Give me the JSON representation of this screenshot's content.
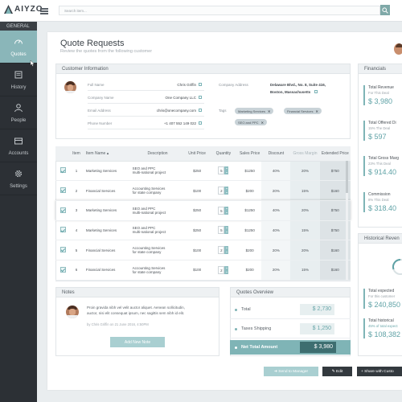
{
  "app": {
    "logo_text": "AIYZO"
  },
  "search": {
    "placeholder": "Search item..."
  },
  "sidebar": {
    "heading": "GENERAL",
    "items": [
      {
        "label": "Quotes",
        "icon": "gauge-icon",
        "active": true
      },
      {
        "label": "History",
        "icon": "history-icon"
      },
      {
        "label": "People",
        "icon": "person-icon"
      },
      {
        "label": "Accounts",
        "icon": "accounts-icon"
      },
      {
        "label": "Settings",
        "icon": "gear-icon"
      }
    ]
  },
  "page": {
    "title": "Quote Requests",
    "subtitle": "Review the quotes from the following customer"
  },
  "customer": {
    "heading": "Customer Information",
    "full_name_label": "Full Name",
    "full_name": "Chris Griffin",
    "company_name_label": "Company Name",
    "company_name": "One Company LLC",
    "email_label": "Email Address",
    "email": "chris@onecompany.com",
    "phone_label": "Phone Number",
    "phone": "+1 407 552 149 022",
    "address_label": "Company Address",
    "address_line1": "Delaware Blvd., No. 8, Suite 416,",
    "address_line2": "Boston, Massachusetts",
    "tags_label": "Tags",
    "tags": [
      "Marketing Services",
      "Financial Services",
      "SEO and PPC"
    ]
  },
  "table": {
    "headers": [
      "Item",
      "Item Name",
      "Description",
      "Unit Price",
      "Quantity",
      "Sales Price",
      "Discount",
      "Gross Margin",
      "Extended Price"
    ],
    "rows": [
      {
        "item": "1",
        "name": "Marketing Services",
        "desc1": "SEO and PPC",
        "desc2": "multi-national project",
        "unit": "$250",
        "qty": "5",
        "sales": "$1250",
        "discount": "40%",
        "gross": "20%",
        "ext": "$750"
      },
      {
        "item": "2",
        "name": "Financial Services",
        "desc1": "Accounting Services",
        "desc2": "for state company",
        "unit": "$100",
        "qty": "2",
        "sales": "$200",
        "discount": "20%",
        "gross": "15%",
        "ext": "$160"
      },
      {
        "item": "3",
        "name": "Marketing Services",
        "desc1": "SEO and PPC",
        "desc2": "multi-national project",
        "unit": "$250",
        "qty": "5",
        "sales": "$1250",
        "discount": "40%",
        "gross": "20%",
        "ext": "$750"
      },
      {
        "item": "4",
        "name": "Marketing Services",
        "desc1": "SEO and PPC",
        "desc2": "multi-national project",
        "unit": "$250",
        "qty": "5",
        "sales": "$1250",
        "discount": "40%",
        "gross": "15%",
        "ext": "$750"
      },
      {
        "item": "5",
        "name": "Financial Services",
        "desc1": "Accounting Services",
        "desc2": "for state company",
        "unit": "$100",
        "qty": "2",
        "sales": "$200",
        "discount": "20%",
        "gross": "20%",
        "ext": "$160"
      },
      {
        "item": "6",
        "name": "Financial Services",
        "desc1": "Accounting Services",
        "desc2": "for state company",
        "unit": "$100",
        "qty": "2",
        "sales": "$200",
        "discount": "20%",
        "gross": "15%",
        "ext": "$160"
      }
    ]
  },
  "notes": {
    "heading": "Notes",
    "text_line1": "Proin gravida nibh vel velit auctor aliquet. Aenean sollicitudin,",
    "text_line2": "auctor, nisi elit consequat ipsum, nec sagittis sem nibh id elit.",
    "meta": "by Chris Griffin on 21 June 2016, 4:50PM",
    "add_button": "Add New Note"
  },
  "overview": {
    "heading": "Quotes Overview",
    "total_label": "Total",
    "total": "$ 2,730",
    "shipping_label": "Taxes Shipping",
    "shipping": "$ 1,250",
    "net_label": "Net Total Amount",
    "net": "$ 3,980"
  },
  "financials": {
    "heading": "Financials",
    "items": [
      {
        "title": "Total Revenue",
        "sub": "For This Deal",
        "value": "$ 3,980"
      },
      {
        "title": "Total Offered Di",
        "sub": "15% The Deal",
        "value": "$ 597"
      },
      {
        "title": "Total Gross Marg",
        "sub": "23% This Deal",
        "value": "$ 914.40"
      },
      {
        "title": "Commission",
        "sub": "8% This Deal",
        "value": "$ 318.40"
      }
    ]
  },
  "historical": {
    "heading": "Historical Reven",
    "items": [
      {
        "title": "Total expected",
        "sub": "For this customer",
        "value": "$ 240,850"
      },
      {
        "title": "Total historical",
        "sub": "45% of total expect",
        "value": "$ 108,382"
      }
    ]
  },
  "actions": {
    "send": "Send to Manager",
    "edit": "Edit",
    "share": "Share with Custo"
  }
}
